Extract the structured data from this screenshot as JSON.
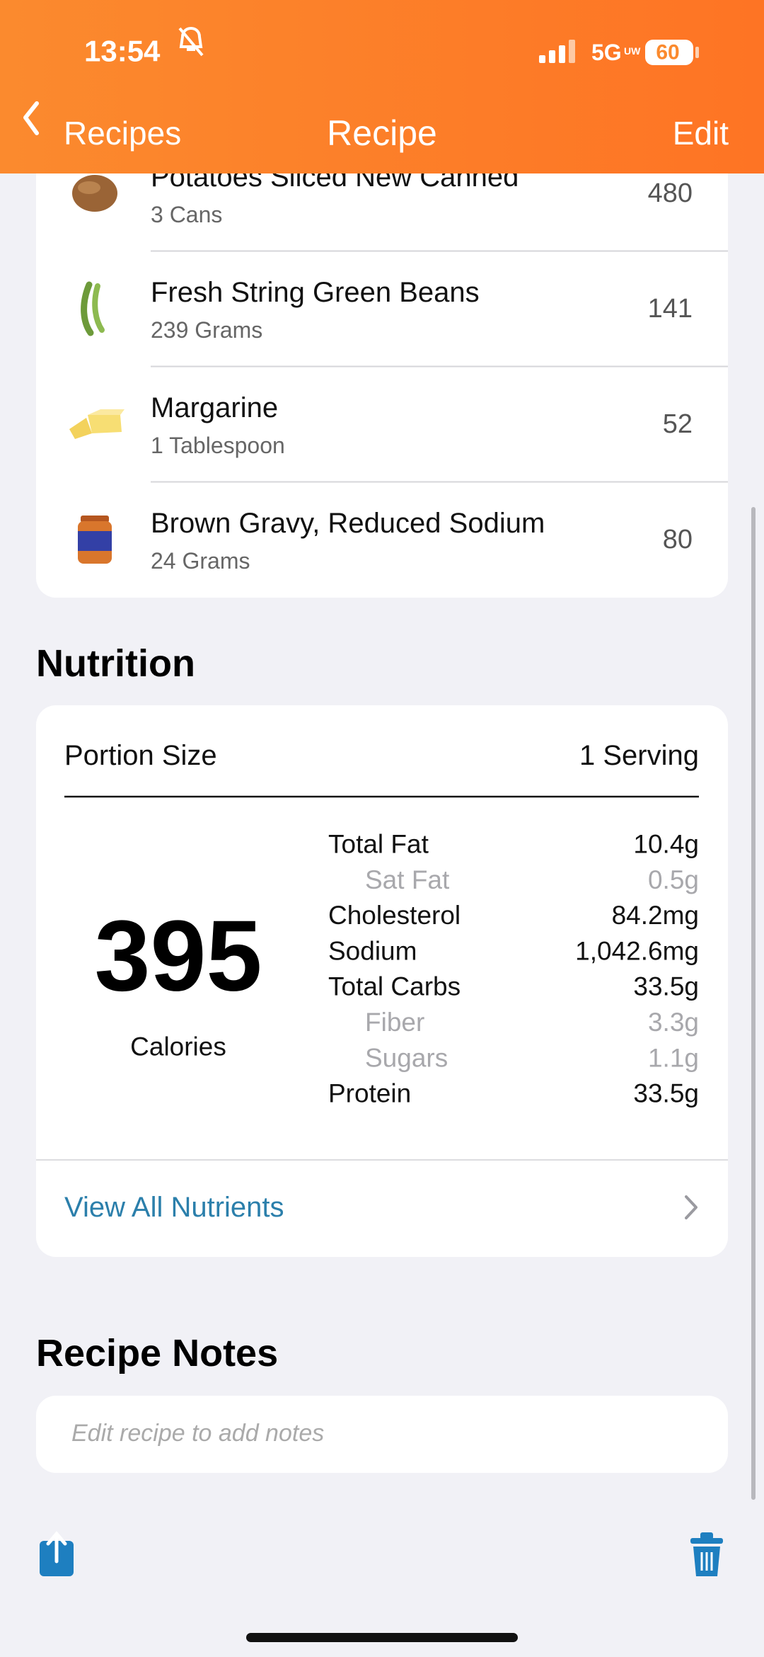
{
  "status": {
    "time": "13:54",
    "network": "5G",
    "network_sub": "UW",
    "battery": "60"
  },
  "nav": {
    "back": "Recipes",
    "title": "Recipe",
    "action": "Edit"
  },
  "ingredients": [
    {
      "name": "Potatoes Sliced New Canned",
      "amount": "3 Cans",
      "calories": 480
    },
    {
      "name": "Fresh String Green Beans",
      "amount": "239 Grams",
      "calories": 141
    },
    {
      "name": "Margarine",
      "amount": "1 Tablespoon",
      "calories": 52
    },
    {
      "name": "Brown Gravy, Reduced Sodium",
      "amount": "24 Grams",
      "calories": 80
    }
  ],
  "nutrition": {
    "heading": "Nutrition",
    "portion_label": "Portion Size",
    "portion_value": "1 Serving",
    "calories": 395,
    "calories_label": "Calories",
    "rows": [
      {
        "label": "Total Fat",
        "value": "10.4g",
        "sub": false
      },
      {
        "label": "Sat Fat",
        "value": "0.5g",
        "sub": true
      },
      {
        "label": "Cholesterol",
        "value": "84.2mg",
        "sub": false
      },
      {
        "label": "Sodium",
        "value": "1,042.6mg",
        "sub": false
      },
      {
        "label": "Total Carbs",
        "value": "33.5g",
        "sub": false
      },
      {
        "label": "Fiber",
        "value": "3.3g",
        "sub": true
      },
      {
        "label": "Sugars",
        "value": "1.1g",
        "sub": true
      },
      {
        "label": "Protein",
        "value": "33.5g",
        "sub": false
      }
    ],
    "view_all": "View All Nutrients"
  },
  "notes": {
    "heading": "Recipe Notes",
    "placeholder": "Edit recipe to add notes"
  }
}
